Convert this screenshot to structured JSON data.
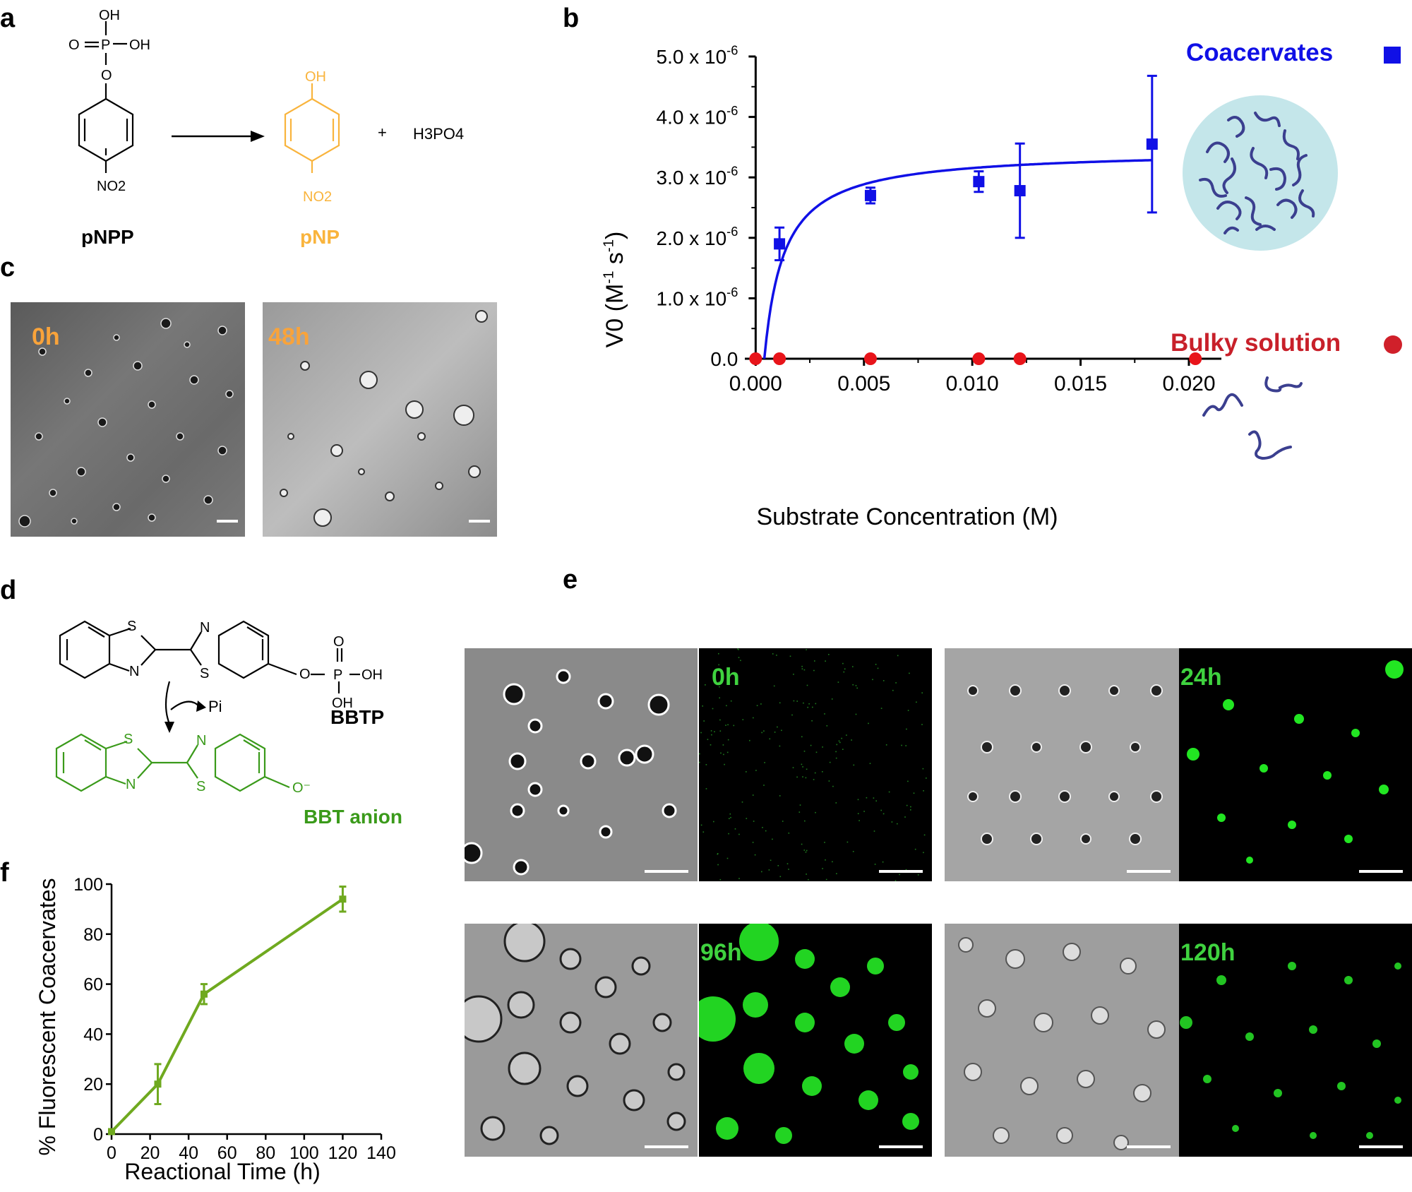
{
  "panels": {
    "a": {
      "label": "a",
      "reactant_name": "pNPP",
      "product_name": "pNP",
      "byproduct": "H3PO4",
      "plus": "+",
      "atoms": {
        "oh": "OH",
        "o": "O",
        "p": "P",
        "no2": "NO2"
      },
      "product_color": "#F9B43D"
    },
    "b": {
      "label": "b",
      "legend": [
        {
          "name": "Coacervates",
          "color": "#1010E6"
        },
        {
          "name": "Bulky solution",
          "color": "#D0202A"
        }
      ]
    },
    "c": {
      "label": "c",
      "images": [
        {
          "time": "0h"
        },
        {
          "time": "48h"
        }
      ],
      "time_color": "#F9A33A"
    },
    "d": {
      "label": "d",
      "substrate_name": "BBTP",
      "product_name": "BBT anion",
      "reagent": "Pi",
      "product_color": "#3A9A1A"
    },
    "e": {
      "label": "e",
      "images": [
        {
          "time": "0h"
        },
        {
          "time": "24h"
        },
        {
          "time": "96h"
        },
        {
          "time": "120h"
        }
      ],
      "time_color": "#3FD23F"
    },
    "f": {
      "label": "f"
    }
  },
  "chart_data": [
    {
      "panel": "b",
      "type": "scatter",
      "xlabel": "Substrate Concentration (M)",
      "ylabel": "V0 (M-1 s-1)",
      "xlim": [
        -0.0005,
        0.0215
      ],
      "ylim": [
        0,
        5e-06
      ],
      "x_ticks": [
        "0.000",
        "0.005",
        "0.010",
        "0.015",
        "0.020"
      ],
      "y_ticks": [
        "0.0",
        "1.0 x 10-6",
        "2.0 x 10-6",
        "3.0 x 10-6",
        "4.0 x 10-6",
        "5.0 x 10-6"
      ],
      "series": [
        {
          "name": "Coacervates",
          "color": "#1010E6",
          "marker": "square",
          "x": [
            0.0011,
            0.0053,
            0.0103,
            0.0122,
            0.0183
          ],
          "y": [
            1.9e-06,
            2.7e-06,
            2.93e-06,
            2.78e-06,
            3.55e-06
          ],
          "yerr": [
            2.7e-07,
            1.3e-07,
            1.7e-07,
            7.8e-07,
            1.13e-06
          ],
          "fit": {
            "model": "Michaelis-Menten",
            "vmax": 3.45e-06,
            "km": 0.0009,
            "x0": 0.0004
          }
        },
        {
          "name": "Bulky solution",
          "color": "#E8141A",
          "marker": "circle",
          "x": [
            0.0,
            0.0011,
            0.0053,
            0.0103,
            0.0122,
            0.0203
          ],
          "y": [
            0,
            0,
            0,
            0,
            0,
            0
          ]
        }
      ]
    },
    {
      "panel": "f",
      "type": "line",
      "xlabel": "Reactional Time (h)",
      "ylabel": "% Fluorescent Coacervates",
      "xlim": [
        0,
        140
      ],
      "ylim": [
        0,
        100
      ],
      "x_ticks": [
        "0",
        "20",
        "40",
        "60",
        "80",
        "100",
        "120",
        "140"
      ],
      "y_ticks": [
        "0",
        "20",
        "40",
        "60",
        "80",
        "100"
      ],
      "series": [
        {
          "color": "#6FA91F",
          "x": [
            0,
            24,
            48,
            120
          ],
          "y": [
            1,
            20,
            56,
            94
          ],
          "yerr": [
            0,
            8,
            4,
            5
          ]
        }
      ]
    }
  ]
}
